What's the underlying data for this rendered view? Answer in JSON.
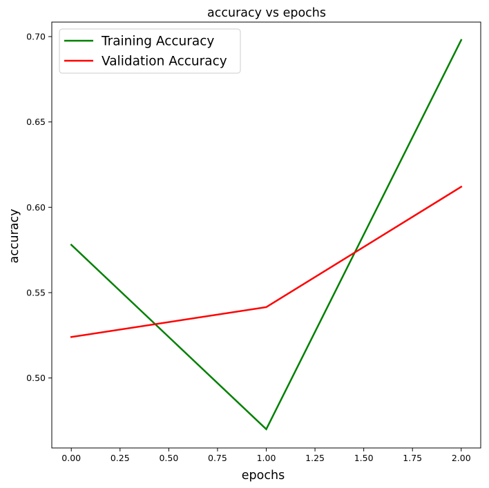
{
  "chart_data": {
    "type": "line",
    "title": "accuracy vs epochs",
    "xlabel": "epochs",
    "ylabel": "accuracy",
    "x": [
      0,
      1,
      2
    ],
    "series": [
      {
        "name": "Training Accuracy",
        "color": "#008000",
        "values": [
          0.578,
          0.47,
          0.698
        ]
      },
      {
        "name": "Validation Accuracy",
        "color": "#ff0000",
        "values": [
          0.524,
          0.5415,
          0.612
        ]
      }
    ],
    "xlim": [
      -0.1,
      2.1
    ],
    "ylim": [
      0.459,
      0.7085
    ],
    "xticks": [
      {
        "value": 0.0,
        "label": "0.00"
      },
      {
        "value": 0.25,
        "label": "0.25"
      },
      {
        "value": 0.5,
        "label": "0.50"
      },
      {
        "value": 0.75,
        "label": "0.75"
      },
      {
        "value": 1.0,
        "label": "1.00"
      },
      {
        "value": 1.25,
        "label": "1.25"
      },
      {
        "value": 1.5,
        "label": "1.50"
      },
      {
        "value": 1.75,
        "label": "1.75"
      },
      {
        "value": 2.0,
        "label": "2.00"
      }
    ],
    "yticks": [
      {
        "value": 0.5,
        "label": "0.50"
      },
      {
        "value": 0.55,
        "label": "0.55"
      },
      {
        "value": 0.6,
        "label": "0.60"
      },
      {
        "value": 0.65,
        "label": "0.65"
      },
      {
        "value": 0.7,
        "label": "0.70"
      }
    ],
    "grid": false,
    "legend_position": "top-left"
  }
}
